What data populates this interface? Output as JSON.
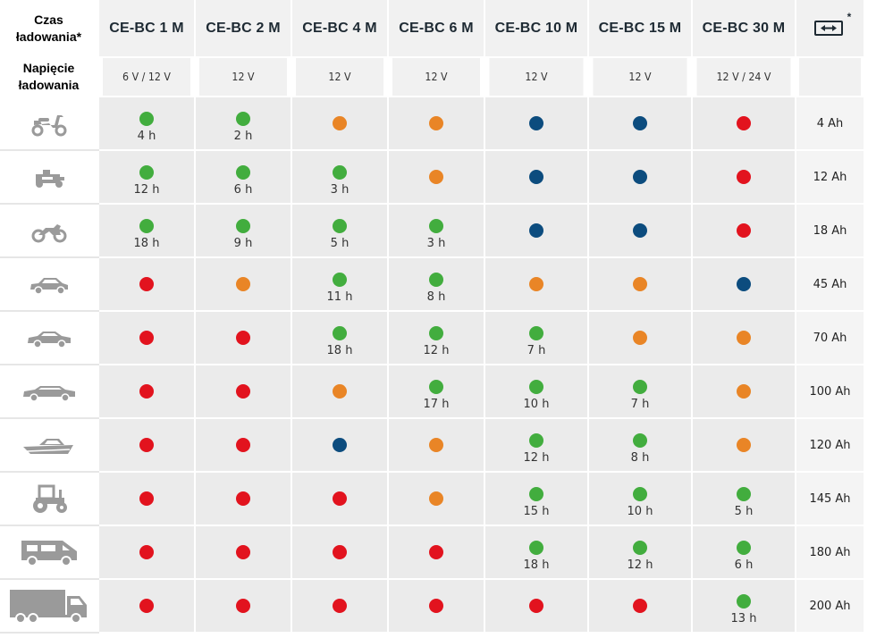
{
  "header": {
    "charge_time_label": "Czas ładowania*",
    "voltage_label": "Napięcie ładowania",
    "battery_star": "*"
  },
  "colors": {
    "green": "#42ad3e",
    "orange": "#e98526",
    "blue": "#0c4c7e",
    "red": "#e2131e"
  },
  "models": [
    {
      "name": "CE-BC 1 M",
      "voltage": "6 V / 12 V"
    },
    {
      "name": "CE-BC 2 M",
      "voltage": "12 V"
    },
    {
      "name": "CE-BC 4 M",
      "voltage": "12 V"
    },
    {
      "name": "CE-BC 6 M",
      "voltage": "12 V"
    },
    {
      "name": "CE-BC 10 M",
      "voltage": "12 V"
    },
    {
      "name": "CE-BC 15 M",
      "voltage": "12 V"
    },
    {
      "name": "CE-BC 30 M",
      "voltage": "12 V / 24 V"
    }
  ],
  "rows": [
    {
      "vehicle": "scooter-icon",
      "capacity": "4 Ah",
      "cells": [
        {
          "color": "green",
          "time": "4 h"
        },
        {
          "color": "green",
          "time": "2 h"
        },
        {
          "color": "orange",
          "time": ""
        },
        {
          "color": "orange",
          "time": ""
        },
        {
          "color": "blue",
          "time": ""
        },
        {
          "color": "blue",
          "time": ""
        },
        {
          "color": "red",
          "time": ""
        }
      ]
    },
    {
      "vehicle": "lawn-tractor-icon",
      "capacity": "12 Ah",
      "cells": [
        {
          "color": "green",
          "time": "12 h"
        },
        {
          "color": "green",
          "time": "6 h"
        },
        {
          "color": "green",
          "time": "3 h"
        },
        {
          "color": "orange",
          "time": ""
        },
        {
          "color": "blue",
          "time": ""
        },
        {
          "color": "blue",
          "time": ""
        },
        {
          "color": "red",
          "time": ""
        }
      ]
    },
    {
      "vehicle": "motorcycle-icon",
      "capacity": "18 Ah",
      "cells": [
        {
          "color": "green",
          "time": "18 h"
        },
        {
          "color": "green",
          "time": "9 h"
        },
        {
          "color": "green",
          "time": "5 h"
        },
        {
          "color": "green",
          "time": "3 h"
        },
        {
          "color": "blue",
          "time": ""
        },
        {
          "color": "blue",
          "time": ""
        },
        {
          "color": "red",
          "time": ""
        }
      ]
    },
    {
      "vehicle": "small-car-icon",
      "capacity": "45 Ah",
      "cells": [
        {
          "color": "red",
          "time": ""
        },
        {
          "color": "orange",
          "time": ""
        },
        {
          "color": "green",
          "time": "11 h"
        },
        {
          "color": "green",
          "time": "8 h"
        },
        {
          "color": "orange",
          "time": ""
        },
        {
          "color": "orange",
          "time": ""
        },
        {
          "color": "blue",
          "time": ""
        }
      ]
    },
    {
      "vehicle": "sedan-icon",
      "capacity": "70 Ah",
      "cells": [
        {
          "color": "red",
          "time": ""
        },
        {
          "color": "red",
          "time": ""
        },
        {
          "color": "green",
          "time": "18 h"
        },
        {
          "color": "green",
          "time": "12 h"
        },
        {
          "color": "green",
          "time": "7 h"
        },
        {
          "color": "orange",
          "time": ""
        },
        {
          "color": "orange",
          "time": ""
        }
      ]
    },
    {
      "vehicle": "limousine-icon",
      "capacity": "100 Ah",
      "cells": [
        {
          "color": "red",
          "time": ""
        },
        {
          "color": "red",
          "time": ""
        },
        {
          "color": "orange",
          "time": ""
        },
        {
          "color": "green",
          "time": "17 h"
        },
        {
          "color": "green",
          "time": "10 h"
        },
        {
          "color": "green",
          "time": "7 h"
        },
        {
          "color": "orange",
          "time": ""
        }
      ]
    },
    {
      "vehicle": "boat-icon",
      "capacity": "120 Ah",
      "cells": [
        {
          "color": "red",
          "time": ""
        },
        {
          "color": "red",
          "time": ""
        },
        {
          "color": "blue",
          "time": ""
        },
        {
          "color": "orange",
          "time": ""
        },
        {
          "color": "green",
          "time": "12 h"
        },
        {
          "color": "green",
          "time": "8 h"
        },
        {
          "color": "orange",
          "time": ""
        }
      ]
    },
    {
      "vehicle": "tractor-icon",
      "capacity": "145 Ah",
      "cells": [
        {
          "color": "red",
          "time": ""
        },
        {
          "color": "red",
          "time": ""
        },
        {
          "color": "red",
          "time": ""
        },
        {
          "color": "orange",
          "time": ""
        },
        {
          "color": "green",
          "time": "15 h"
        },
        {
          "color": "green",
          "time": "10 h"
        },
        {
          "color": "green",
          "time": "5 h"
        }
      ]
    },
    {
      "vehicle": "camper-icon",
      "capacity": "180 Ah",
      "cells": [
        {
          "color": "red",
          "time": ""
        },
        {
          "color": "red",
          "time": ""
        },
        {
          "color": "red",
          "time": ""
        },
        {
          "color": "red",
          "time": ""
        },
        {
          "color": "green",
          "time": "18 h"
        },
        {
          "color": "green",
          "time": "12 h"
        },
        {
          "color": "green",
          "time": "6 h"
        }
      ]
    },
    {
      "vehicle": "truck-icon",
      "capacity": "200 Ah",
      "cells": [
        {
          "color": "red",
          "time": ""
        },
        {
          "color": "red",
          "time": ""
        },
        {
          "color": "red",
          "time": ""
        },
        {
          "color": "red",
          "time": ""
        },
        {
          "color": "red",
          "time": ""
        },
        {
          "color": "red",
          "time": ""
        },
        {
          "color": "green",
          "time": "13 h"
        }
      ]
    }
  ]
}
